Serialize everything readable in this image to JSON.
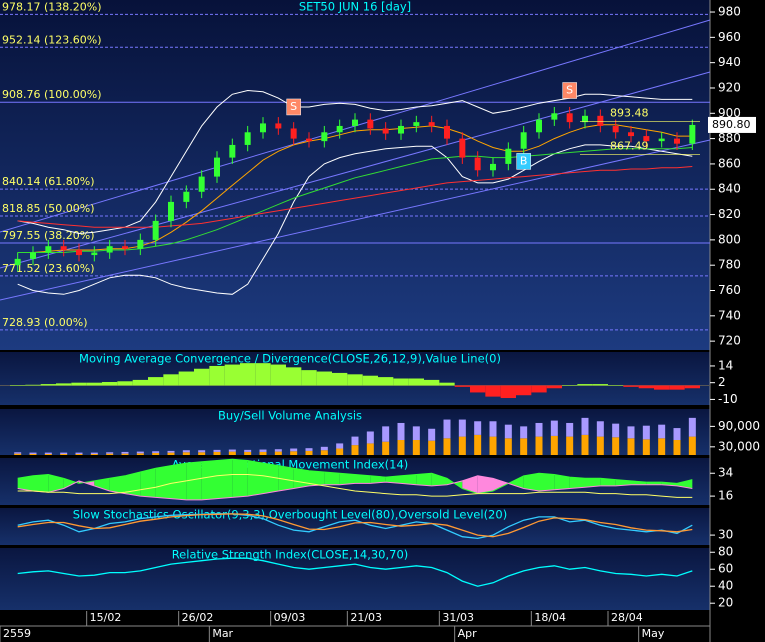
{
  "chart_data": [
    {
      "type": "candlestick",
      "title": "SET50 JUN 16  [day]",
      "categories": [
        null,
        null,
        null,
        null,
        null,
        "15/02",
        null,
        null,
        null,
        null,
        null,
        "26/02",
        null,
        null,
        null,
        null,
        null,
        "09/03",
        null,
        null,
        null,
        null,
        "21/03",
        null,
        null,
        null,
        null,
        null,
        "31/03",
        null,
        null,
        null,
        null,
        null,
        "18/04",
        null,
        null,
        null,
        null,
        "28/04",
        null,
        null,
        null,
        null,
        null
      ],
      "months": [
        "2559",
        null,
        null,
        null,
        null,
        null,
        null,
        null,
        null,
        null,
        null,
        null,
        null,
        "Mar",
        null,
        null,
        null,
        null,
        null,
        null,
        null,
        null,
        null,
        null,
        null,
        null,
        null,
        null,
        null,
        "Apr",
        null,
        null,
        null,
        null,
        null,
        null,
        null,
        null,
        null,
        null,
        null,
        "May",
        null,
        null,
        null
      ],
      "open": [
        780,
        785,
        790,
        795,
        792,
        788,
        790,
        795,
        793,
        800,
        815,
        830,
        838,
        850,
        865,
        875,
        885,
        892,
        888,
        880,
        878,
        885,
        890,
        895,
        888,
        884,
        890,
        893,
        890,
        880,
        865,
        855,
        860,
        872,
        885,
        895,
        900,
        893,
        898,
        890,
        885,
        882,
        878,
        880,
        876
      ],
      "high": [
        790,
        795,
        800,
        800,
        797,
        795,
        800,
        800,
        805,
        820,
        835,
        843,
        855,
        870,
        880,
        890,
        897,
        897,
        893,
        885,
        890,
        895,
        900,
        900,
        893,
        895,
        898,
        898,
        895,
        885,
        870,
        865,
        877,
        890,
        900,
        905,
        905,
        903,
        903,
        895,
        890,
        887,
        885,
        885,
        895
      ],
      "low": [
        775,
        780,
        785,
        787,
        783,
        783,
        785,
        788,
        788,
        795,
        810,
        825,
        833,
        845,
        860,
        870,
        880,
        883,
        875,
        873,
        873,
        880,
        885,
        883,
        879,
        879,
        885,
        885,
        875,
        860,
        850,
        850,
        855,
        867,
        880,
        890,
        888,
        888,
        885,
        880,
        877,
        873,
        873,
        871,
        871
      ],
      "close": [
        785,
        790,
        795,
        792,
        788,
        790,
        795,
        793,
        800,
        815,
        830,
        838,
        850,
        865,
        875,
        885,
        892,
        888,
        880,
        878,
        885,
        890,
        895,
        888,
        884,
        890,
        893,
        890,
        880,
        865,
        855,
        860,
        872,
        885,
        895,
        900,
        893,
        898,
        890,
        885,
        882,
        878,
        880,
        876,
        890.8
      ],
      "up_color": "#33ff33",
      "down_color": "#ff2020",
      "series": [
        {
          "color": "#ffffff",
          "values": [
            815,
            813,
            810,
            808,
            805,
            806,
            808,
            810,
            815,
            830,
            850,
            870,
            890,
            905,
            915,
            918,
            917,
            912,
            905,
            905,
            907,
            908,
            907,
            904,
            902,
            903,
            905,
            906,
            908,
            910,
            905,
            900,
            902,
            905,
            908,
            910,
            912,
            915,
            915,
            914,
            913,
            912,
            911,
            911,
            911
          ]
        },
        {
          "color": "#ffffff",
          "values": [
            765,
            760,
            758,
            757,
            760,
            765,
            770,
            772,
            772,
            770,
            765,
            762,
            760,
            758,
            757,
            765,
            785,
            805,
            830,
            850,
            860,
            865,
            868,
            870,
            872,
            873,
            874,
            874,
            865,
            850,
            845,
            845,
            848,
            855,
            862,
            868,
            872,
            875,
            875,
            874,
            874,
            872,
            870,
            868,
            866
          ]
        },
        {
          "color": "#ffa500",
          "values": [
            790,
            790,
            791,
            792,
            792,
            792,
            793,
            793,
            795,
            799,
            806,
            814,
            823,
            833,
            843,
            853,
            863,
            870,
            875,
            878,
            880,
            883,
            886,
            887,
            887,
            888,
            889,
            890,
            888,
            884,
            878,
            873,
            870,
            870,
            874,
            880,
            885,
            889,
            891,
            891,
            889,
            887,
            885,
            882,
            882
          ]
        },
        {
          "color": "#33dd33",
          "values": [
            790,
            790,
            790,
            790,
            791,
            791,
            792,
            792,
            793,
            795,
            797,
            800,
            804,
            808,
            813,
            818,
            823,
            828,
            833,
            837,
            841,
            845,
            849,
            852,
            855,
            858,
            861,
            864,
            865,
            866,
            866,
            865,
            865,
            866,
            867,
            868,
            869,
            870,
            871,
            872,
            872,
            872,
            872,
            872,
            873
          ]
        },
        {
          "color": "#ff3030",
          "values": [
            815,
            814,
            813,
            812,
            811,
            810,
            810,
            810,
            810,
            810,
            811,
            812,
            813,
            815,
            817,
            819,
            821,
            823,
            825,
            827,
            829,
            831,
            833,
            835,
            837,
            839,
            841,
            843,
            845,
            846,
            847,
            848,
            849,
            850,
            851,
            852,
            853,
            854,
            855,
            855,
            856,
            856,
            857,
            857,
            858
          ]
        }
      ],
      "levels": [
        {
          "value": 978.17,
          "label": "978.17 (138.20%)"
        },
        {
          "value": 952.14,
          "label": "952.14 (123.60%)"
        },
        {
          "value": 908.76,
          "label": "908.76 (100.00%)"
        },
        {
          "value": 840.14,
          "label": "840.14 (61.80%)"
        },
        {
          "value": 818.85,
          "label": "818.85 (50.00%)"
        },
        {
          "value": 797.55,
          "label": "797.55 (38.20%)"
        },
        {
          "value": 771.52,
          "label": "771.52 (23.60%)"
        },
        {
          "value": 728.93,
          "label": "728.93 (0.00%)"
        }
      ],
      "price_labels": [
        893.48,
        867.49
      ],
      "last_price": {
        "value": 890.8,
        "label": "890.80"
      },
      "markers": [
        {
          "label": "S",
          "index": 18,
          "value": 905
        },
        {
          "label": "S",
          "index": 36,
          "value": 918
        },
        {
          "label": "B",
          "index": 33,
          "value": 862
        }
      ],
      "ylim": [
        713,
        989.5
      ],
      "yticks": [
        720,
        740,
        760,
        780,
        800,
        820,
        840,
        860,
        880,
        900,
        920,
        940,
        960,
        980
      ]
    },
    {
      "type": "bar",
      "title": "Moving Average Convergence / Divergence(CLOSE,26,12,9),Value Line(0)",
      "values": [
        0,
        0.5,
        1,
        1.5,
        2,
        2,
        2.5,
        3,
        4,
        6,
        8,
        10,
        12,
        14,
        15,
        16,
        16,
        15,
        13,
        11,
        10,
        9,
        8,
        7,
        6,
        5,
        5,
        4,
        2,
        -1,
        -5,
        -8,
        -9,
        -7,
        -5,
        -2,
        0,
        1,
        1,
        0,
        -1,
        -2,
        -3,
        -3,
        -2
      ],
      "pos_color": "#99ff33",
      "neg_color": "#ff2020",
      "ylim": [
        -14,
        24
      ],
      "yticks": [
        14,
        2,
        -10
      ]
    },
    {
      "type": "stacked_bar",
      "title": "Buy/Sell Volume Analysis",
      "series": [
        {
          "color": "#ffa500",
          "values": [
            10000,
            9000,
            9000,
            9000,
            9000,
            9000,
            10000,
            10000,
            11000,
            12000,
            13000,
            14000,
            14000,
            15000,
            16000,
            15000,
            15000,
            16000,
            17000,
            18000,
            20000,
            25000,
            35000,
            40000,
            45000,
            50000,
            50000,
            48000,
            55000,
            60000,
            65000,
            60000,
            55000,
            55000,
            60000,
            62000,
            60000,
            65000,
            60000,
            58000,
            55000,
            52000,
            55000,
            50000,
            60000
          ]
        },
        {
          "color": "#a899ff",
          "values": [
            4000,
            4000,
            4000,
            4000,
            4000,
            4000,
            4000,
            5000,
            5000,
            5000,
            5000,
            6000,
            6000,
            6000,
            6000,
            6000,
            7000,
            7000,
            8000,
            8000,
            10000,
            15000,
            25000,
            35000,
            45000,
            50000,
            40000,
            35000,
            55000,
            50000,
            40000,
            45000,
            40000,
            35000,
            40000,
            45000,
            40000,
            50000,
            45000,
            40000,
            35000,
            40000,
            40000,
            35000,
            55000
          ]
        }
      ],
      "ylim": [
        6000,
        141000
      ],
      "yticks": [
        {
          "value": 90000,
          "label": "90,000"
        },
        {
          "value": 30000,
          "label": "30,000"
        }
      ]
    },
    {
      "type": "area",
      "title": "Average Directional Movement Index(14)",
      "series": [
        {
          "color": "#33ff33",
          "values": [
            30,
            32,
            33,
            30,
            26,
            28,
            30,
            32,
            35,
            38,
            40,
            42,
            43,
            44,
            45,
            44,
            42,
            40,
            38,
            36,
            35,
            34,
            33,
            32,
            31,
            32,
            33,
            34,
            30,
            22,
            18,
            20,
            26,
            32,
            34,
            33,
            31,
            30,
            30,
            29,
            28,
            27,
            27,
            26,
            29
          ]
        },
        {
          "color": "#ff88dd",
          "values": [
            22,
            20,
            19,
            22,
            28,
            24,
            20,
            18,
            16,
            15,
            14,
            13,
            13,
            14,
            15,
            16,
            18,
            20,
            22,
            24,
            25,
            25,
            26,
            26,
            27,
            26,
            25,
            24,
            25,
            28,
            32,
            30,
            26,
            22,
            20,
            21,
            22,
            23,
            24,
            24,
            25,
            25,
            25,
            24,
            22
          ]
        },
        {
          "color": "#ffff66",
          "values": [
            20,
            20,
            19,
            19,
            18,
            18,
            18,
            19,
            21,
            23,
            26,
            28,
            30,
            32,
            33,
            33,
            32,
            30,
            28,
            26,
            24,
            22,
            20,
            19,
            18,
            17,
            17,
            16,
            16,
            17,
            18,
            18,
            18,
            18,
            19,
            19,
            19,
            19,
            18,
            18,
            17,
            17,
            16,
            15,
            15
          ]
        }
      ],
      "ylim": [
        9,
        46
      ],
      "yticks": [
        34,
        16
      ]
    },
    {
      "type": "line",
      "title": "Slow Stochastics Oscillator(9,3,3),Overbought Level(80),Oversold Level(20)",
      "series": [
        {
          "color": "#33ccff",
          "values": [
            60,
            70,
            75,
            60,
            40,
            50,
            65,
            70,
            80,
            85,
            90,
            92,
            93,
            95,
            94,
            90,
            80,
            60,
            45,
            40,
            55,
            70,
            75,
            60,
            50,
            60,
            70,
            65,
            45,
            25,
            20,
            30,
            55,
            75,
            85,
            85,
            70,
            75,
            60,
            50,
            45,
            40,
            45,
            35,
            60
          ]
        },
        {
          "color": "#ff9933",
          "values": [
            55,
            62,
            68,
            68,
            58,
            50,
            52,
            62,
            72,
            78,
            85,
            89,
            92,
            93,
            94,
            93,
            88,
            77,
            62,
            48,
            47,
            55,
            67,
            68,
            62,
            57,
            60,
            65,
            60,
            45,
            30,
            25,
            35,
            53,
            72,
            82,
            80,
            77,
            68,
            62,
            52,
            45,
            43,
            40,
            47
          ]
        }
      ],
      "ylim": [
        0,
        112
      ],
      "yticks": [
        30
      ]
    },
    {
      "type": "line",
      "title": "Relative Strength Index(CLOSE,14,30,70)",
      "series": [
        {
          "color": "#00ffff",
          "values": [
            55,
            57,
            58,
            55,
            52,
            53,
            56,
            56,
            58,
            62,
            66,
            68,
            70,
            72,
            73,
            73,
            70,
            66,
            62,
            60,
            62,
            64,
            66,
            62,
            60,
            62,
            64,
            62,
            56,
            46,
            40,
            44,
            52,
            58,
            62,
            64,
            60,
            62,
            58,
            55,
            54,
            52,
            54,
            52,
            58
          ]
        }
      ],
      "ylim": [
        12,
        85
      ],
      "yticks": [
        80,
        60,
        40,
        20
      ]
    }
  ]
}
